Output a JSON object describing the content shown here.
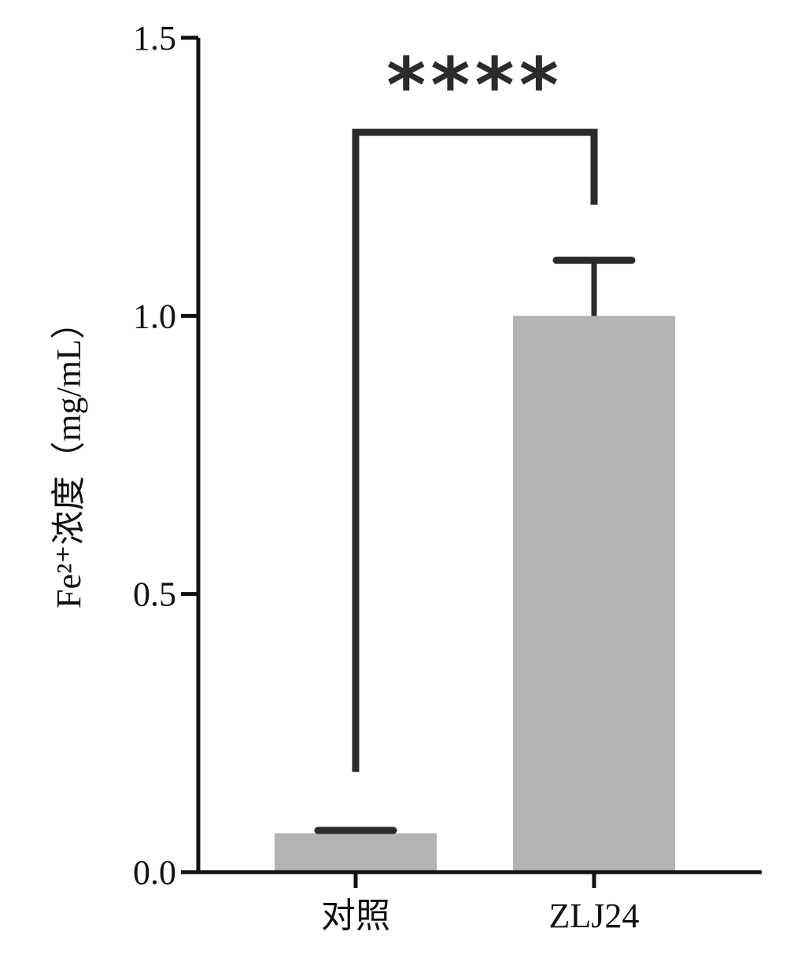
{
  "chart_data": {
    "type": "bar",
    "categories": [
      "对照",
      "ZLJ24"
    ],
    "values": [
      0.07,
      1.0
    ],
    "errors": [
      0.005,
      0.1
    ],
    "ylabel": "Fe²⁺浓度（mg/mL）",
    "ylim": [
      0,
      1.5
    ],
    "yticks": [
      "0.0",
      "0.5",
      "1.0",
      "1.5"
    ],
    "ytick_values": [
      0,
      0.5,
      1.0,
      1.5
    ],
    "significance": {
      "label": "****",
      "left_end": 0.18,
      "right_end": 1.2,
      "top": 1.33
    },
    "colors": {
      "bar": "#b3b3b3",
      "axis": "#111111",
      "error": "#2b2b2b"
    },
    "grid": false
  }
}
